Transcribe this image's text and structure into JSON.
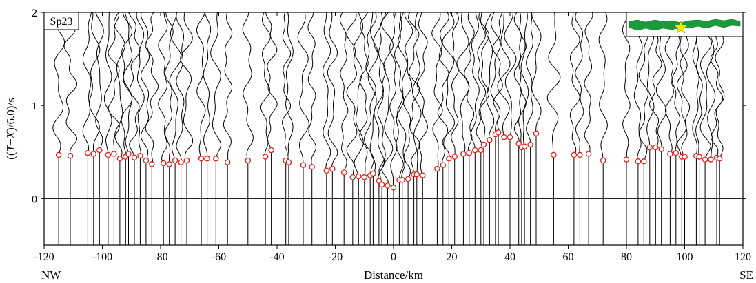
{
  "chart_data": {
    "type": "seismic-record-section",
    "panel_label": "Sp23",
    "xlabel": "Distance/km",
    "ylabel_prefix": "((",
    "ylabel_T": "T",
    "ylabel_minus": "−",
    "ylabel_X": "X",
    "ylabel_suffix": ")/6.0)/s",
    "left_direction": "NW",
    "right_direction": "SE",
    "xlim": [
      -120,
      120
    ],
    "ylim": [
      -0.5,
      2
    ],
    "xticks": [
      -120,
      -100,
      -80,
      -60,
      -40,
      -20,
      0,
      20,
      40,
      60,
      80,
      100,
      120
    ],
    "yticks": [
      0,
      1,
      2
    ],
    "reference_line_y": 0,
    "trace_color": "#000000",
    "pick_color": "#e0201a",
    "inset_colors": {
      "profile": "#1a9a3a",
      "star": "#ffea00"
    },
    "picks": [
      [
        -115,
        0.47
      ],
      [
        -111,
        0.46
      ],
      [
        -105,
        0.49
      ],
      [
        -103,
        0.48
      ],
      [
        -101,
        0.52
      ],
      [
        -98,
        0.47
      ],
      [
        -96,
        0.48
      ],
      [
        -94,
        0.43
      ],
      [
        -92,
        0.45
      ],
      [
        -91,
        0.48
      ],
      [
        -89,
        0.44
      ],
      [
        -87,
        0.46
      ],
      [
        -85,
        0.41
      ],
      [
        -83,
        0.37
      ],
      [
        -79,
        0.38
      ],
      [
        -77,
        0.37
      ],
      [
        -75,
        0.41
      ],
      [
        -73,
        0.39
      ],
      [
        -71,
        0.41
      ],
      [
        -66,
        0.43
      ],
      [
        -64,
        0.43
      ],
      [
        -61,
        0.43
      ],
      [
        -57,
        0.39
      ],
      [
        -50,
        0.41
      ],
      [
        -44,
        0.45
      ],
      [
        -42,
        0.52
      ],
      [
        -37,
        0.41
      ],
      [
        -36,
        0.39
      ],
      [
        -31,
        0.36
      ],
      [
        -28,
        0.34
      ],
      [
        -23,
        0.3
      ],
      [
        -21,
        0.32
      ],
      [
        -17,
        0.28
      ],
      [
        -14,
        0.23
      ],
      [
        -12,
        0.24
      ],
      [
        -10,
        0.23
      ],
      [
        -8,
        0.25
      ],
      [
        -7,
        0.27
      ],
      [
        -5,
        0.19
      ],
      [
        -4,
        0.15
      ],
      [
        -2,
        0.14
      ],
      [
        0,
        0.12
      ],
      [
        2,
        0.2
      ],
      [
        3,
        0.2
      ],
      [
        5,
        0.21
      ],
      [
        7,
        0.26
      ],
      [
        8,
        0.26
      ],
      [
        10,
        0.25
      ],
      [
        15,
        0.32
      ],
      [
        17,
        0.36
      ],
      [
        19,
        0.43
      ],
      [
        21,
        0.45
      ],
      [
        24,
        0.48
      ],
      [
        26,
        0.49
      ],
      [
        28,
        0.52
      ],
      [
        30,
        0.52
      ],
      [
        31,
        0.58
      ],
      [
        33,
        0.63
      ],
      [
        35,
        0.69
      ],
      [
        36,
        0.71
      ],
      [
        38,
        0.66
      ],
      [
        40,
        0.66
      ],
      [
        43,
        0.59
      ],
      [
        44,
        0.55
      ],
      [
        45,
        0.56
      ],
      [
        47,
        0.58
      ],
      [
        49,
        0.7
      ],
      [
        55,
        0.47
      ],
      [
        62,
        0.47
      ],
      [
        64,
        0.47
      ],
      [
        67,
        0.48
      ],
      [
        72,
        0.41
      ],
      [
        80,
        0.42
      ],
      [
        84,
        0.4
      ],
      [
        86,
        0.4
      ],
      [
        88,
        0.55
      ],
      [
        90,
        0.55
      ],
      [
        92,
        0.53
      ],
      [
        95,
        0.48
      ],
      [
        97,
        0.49
      ],
      [
        99,
        0.45
      ],
      [
        100,
        0.45
      ],
      [
        104,
        0.46
      ],
      [
        105,
        0.45
      ],
      [
        107,
        0.42
      ],
      [
        109,
        0.42
      ],
      [
        111,
        0.44
      ],
      [
        112,
        0.43
      ]
    ]
  }
}
